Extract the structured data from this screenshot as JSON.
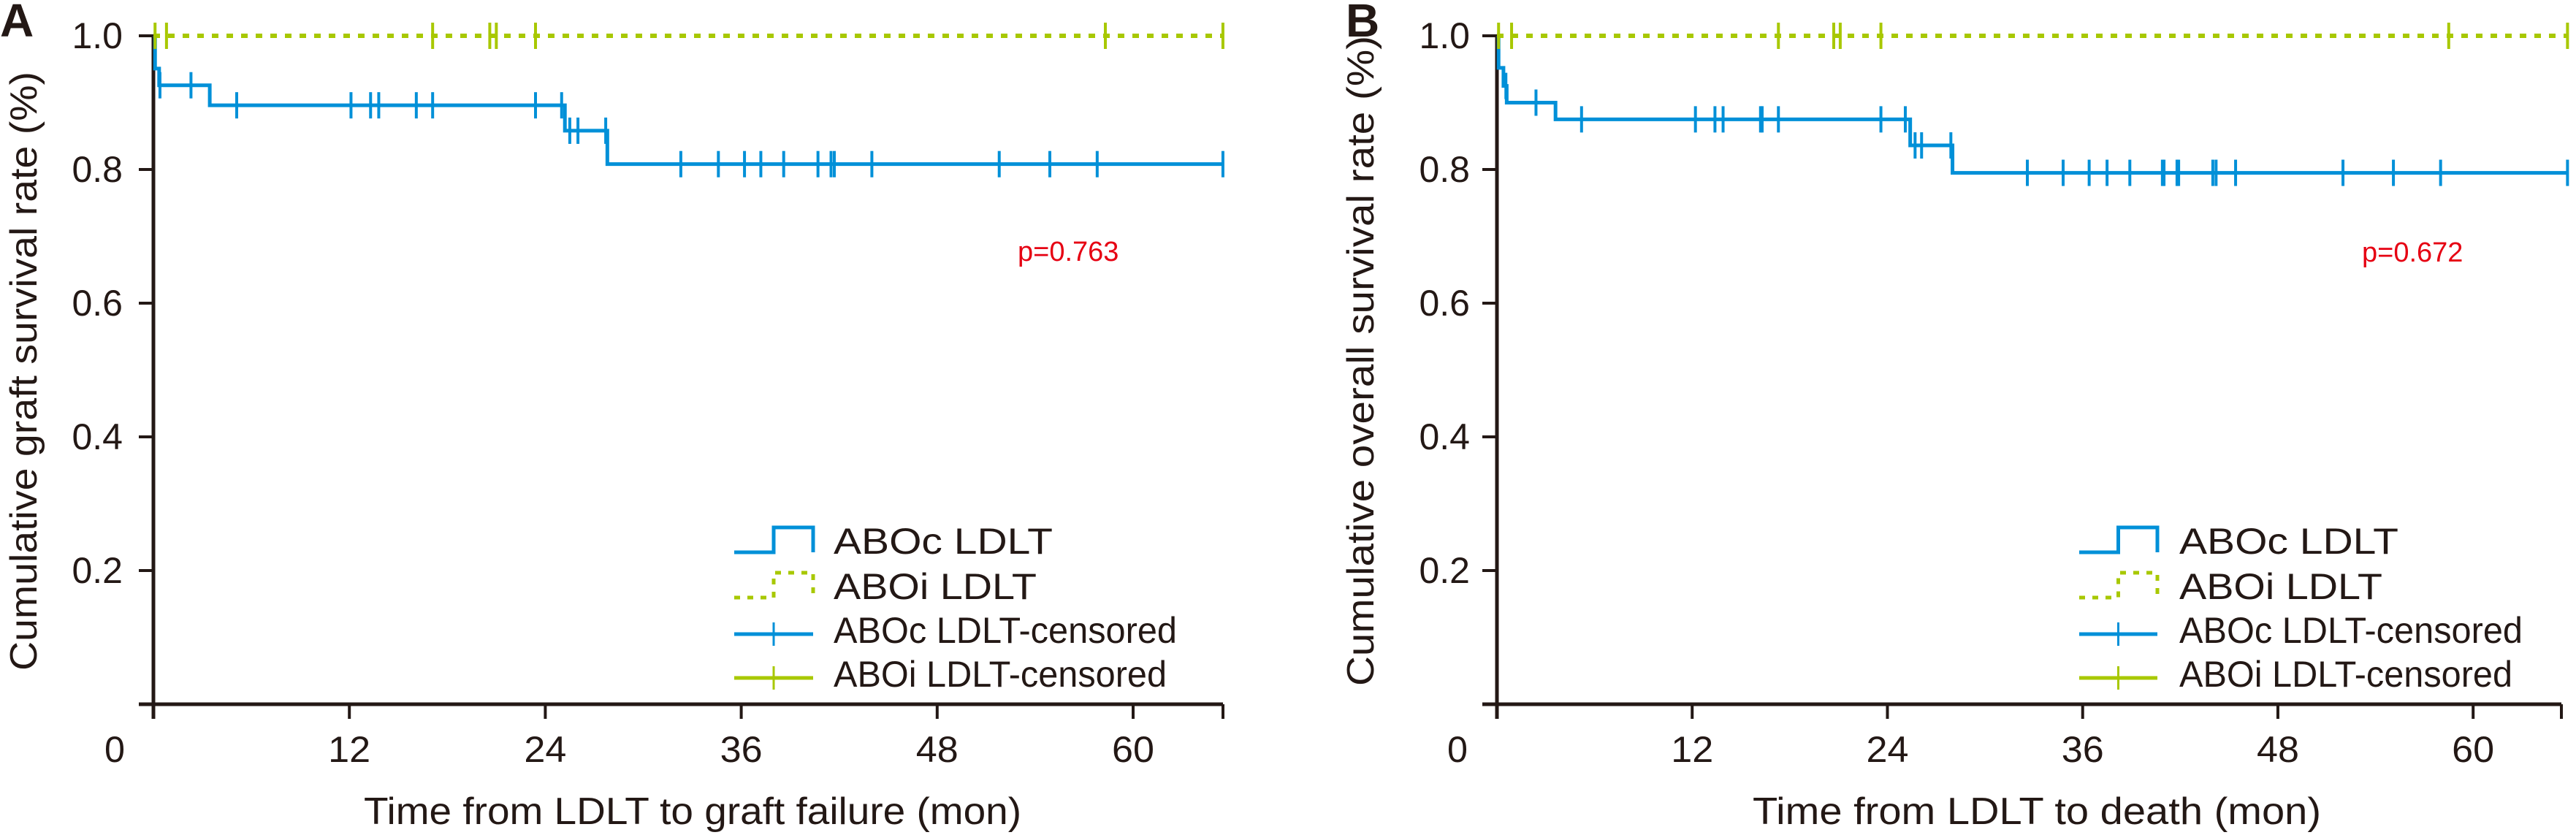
{
  "colors": {
    "abo_compatible": "#0090d8",
    "abo_incompatible": "#a8c800",
    "pvalue": "#e60012",
    "axis": "#231815"
  },
  "chart_data": [
    {
      "panel": "A",
      "type": "line",
      "subtype": "kaplan-meier",
      "title": "",
      "xlabel": "Time from LDLT to graft failure (mon)",
      "ylabel": "Cumulative graft survival rate (%)",
      "xlim": [
        0,
        65
      ],
      "ylim": [
        0,
        1.0
      ],
      "xticks": [
        0,
        12,
        24,
        36,
        48,
        60
      ],
      "xtick_labels": [
        "0",
        "12",
        "24",
        "36",
        "48",
        "60"
      ],
      "yticks": [
        0.2,
        0.4,
        0.6,
        0.8,
        1.0
      ],
      "ytick_labels": [
        "0.2",
        "0.4",
        "0.6",
        "0.8",
        "1.0"
      ],
      "grid": false,
      "legend_position": "bottom-right",
      "annotation": "p=0.763",
      "legend": [
        "ABOc LDLT",
        "ABOi LDLT",
        "ABOc LDLT-censored",
        "ABOi LDLT-censored"
      ],
      "series": [
        {
          "name": "ABOc LDLT",
          "style": "solid",
          "steps": [
            [
              0,
              1.0
            ],
            [
              0.1,
              0.951
            ],
            [
              0.35,
              0.926
            ],
            [
              3.45,
              0.896
            ],
            [
              25.2,
              0.858
            ],
            [
              27.8,
              0.808
            ]
          ],
          "end": 65.5,
          "censored": [
            0.4,
            2.3,
            5.1,
            12.1,
            13.3,
            13.8,
            16.1,
            17.1,
            23.4,
            25.0,
            25.5,
            26.0,
            27.7,
            32.3,
            34.6,
            36.2,
            37.2,
            38.6,
            40.7,
            41.5,
            41.7,
            44.0,
            51.8,
            54.9,
            57.8,
            65.5
          ]
        },
        {
          "name": "ABOi LDLT",
          "style": "dotted",
          "steps": [
            [
              0,
              1.0
            ]
          ],
          "end": 65.5,
          "censored": [
            0.1,
            0.8,
            17.1,
            20.6,
            21.0,
            23.4,
            23.4,
            58.3,
            65.5
          ]
        }
      ]
    },
    {
      "panel": "B",
      "type": "line",
      "subtype": "kaplan-meier",
      "title": "",
      "xlabel": "Time from LDLT to death (mon)",
      "ylabel": "Cumulative overall survival rate (%)",
      "xlim": [
        0,
        65
      ],
      "ylim": [
        0,
        1.0
      ],
      "xticks": [
        0,
        12,
        24,
        36,
        48,
        60
      ],
      "xtick_labels": [
        "0",
        "12",
        "24",
        "36",
        "48",
        "60"
      ],
      "yticks": [
        0.2,
        0.4,
        0.6,
        0.8,
        1.0
      ],
      "ytick_labels": [
        "0.2",
        "0.4",
        "0.6",
        "0.8",
        "1.0"
      ],
      "grid": false,
      "legend_position": "bottom-right",
      "annotation": "p=0.672",
      "legend": [
        "ABOc LDLT",
        "ABOi LDLT",
        "ABOc LDLT-censored",
        "ABOi LDLT-censored"
      ],
      "series": [
        {
          "name": "ABOc LDLT",
          "style": "solid",
          "steps": [
            [
              0,
              1.0
            ],
            [
              0.1,
              0.952
            ],
            [
              0.4,
              0.925
            ],
            [
              0.6,
              0.9
            ],
            [
              3.6,
              0.875
            ],
            [
              25.4,
              0.836
            ],
            [
              28.0,
              0.795
            ]
          ],
          "end": 65.8,
          "censored": [
            0.55,
            2.4,
            5.2,
            12.2,
            13.4,
            13.9,
            16.2,
            16.3,
            17.3,
            23.6,
            25.1,
            25.7,
            26.1,
            27.9,
            32.6,
            34.8,
            36.4,
            37.5,
            38.9,
            40.9,
            41.0,
            41.8,
            41.9,
            44.0,
            44.2,
            45.4,
            52.0,
            55.1,
            58.0,
            65.8
          ]
        },
        {
          "name": "ABOi LDLT",
          "style": "dotted",
          "steps": [
            [
              0,
              1.0
            ]
          ],
          "end": 65.8,
          "censored": [
            0.1,
            0.9,
            17.3,
            20.7,
            21.1,
            23.6,
            58.5,
            65.8
          ]
        }
      ]
    }
  ]
}
